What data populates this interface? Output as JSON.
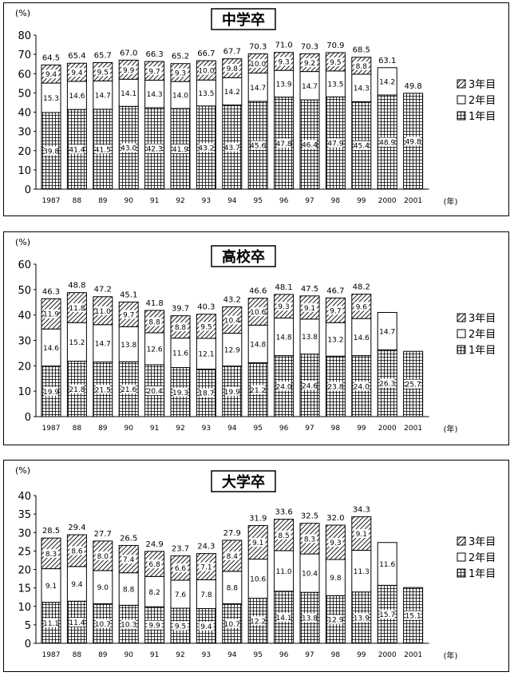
{
  "page": {
    "unit_label": "(%)",
    "year_suffix": "(年)"
  },
  "chart_data": [
    {
      "type": "bar",
      "stacked": true,
      "title": "中学卒",
      "ylabel": "(%)",
      "xlabel": "(年)",
      "ylim": [
        0,
        80
      ],
      "yticks": [
        0,
        10,
        20,
        30,
        40,
        50,
        60,
        70,
        80
      ],
      "categories": [
        "1987",
        "88",
        "89",
        "90",
        "91",
        "92",
        "93",
        "94",
        "95",
        "96",
        "97",
        "98",
        "99",
        "2000",
        "2001"
      ],
      "series": [
        {
          "name": "1年目",
          "values": [
            39.8,
            41.4,
            41.5,
            43.0,
            42.3,
            41.9,
            43.2,
            43.7,
            45.6,
            47.8,
            46.4,
            47.9,
            45.4,
            48.9,
            49.8
          ],
          "labels": [
            "39.8",
            "41.4",
            "41.5",
            "43.0",
            "42.3",
            "41.9",
            "43.2",
            "43.7",
            "45.6",
            "47.8",
            "46.4",
            "47.9",
            "45.4",
            "48.9",
            "49.8"
          ]
        },
        {
          "name": "2年目",
          "values": [
            15.3,
            14.6,
            14.7,
            14.1,
            14.3,
            14.0,
            13.5,
            14.2,
            14.7,
            13.9,
            14.7,
            13.5,
            14.3,
            14.2,
            null
          ],
          "labels": [
            "15.3",
            "14.6",
            "14.7",
            "14.1",
            "14.3",
            "14.0",
            "13.5",
            "14.2",
            "14.7",
            "13.9",
            "14.7",
            "13.5",
            "14.3",
            "14.2",
            ""
          ]
        },
        {
          "name": "3年目",
          "values": [
            9.4,
            9.4,
            9.5,
            9.9,
            9.7,
            9.3,
            10.0,
            9.8,
            10.0,
            9.3,
            9.2,
            9.5,
            8.8,
            null,
            null
          ],
          "labels": [
            "9.4",
            "9.4",
            "9.5",
            "9.9",
            "9.7",
            "9.3",
            "10.0",
            "9.8",
            "10.0",
            "9.3",
            "9.2",
            "9.5",
            "8.8",
            "",
            ""
          ]
        }
      ],
      "totals": [
        "64.5",
        "65.4",
        "65.7",
        "67.0",
        "66.3",
        "65.2",
        "66.7",
        "67.7",
        "70.3",
        "71.0",
        "70.3",
        "70.9",
        "68.5",
        "63.1",
        "49.8"
      ],
      "legend": [
        "3年目",
        "2年目",
        "1年目"
      ],
      "legend_position": "right"
    },
    {
      "type": "bar",
      "stacked": true,
      "title": "高校卒",
      "ylabel": "(%)",
      "xlabel": "(年)",
      "ylim": [
        0,
        60
      ],
      "yticks": [
        0,
        10,
        20,
        30,
        40,
        50,
        60
      ],
      "categories": [
        "1987",
        "88",
        "89",
        "90",
        "91",
        "92",
        "93",
        "94",
        "95",
        "96",
        "97",
        "98",
        "99",
        "2000",
        "2001"
      ],
      "series": [
        {
          "name": "1年目",
          "values": [
            19.9,
            21.8,
            21.5,
            21.6,
            20.4,
            19.3,
            18.7,
            19.9,
            21.2,
            24.0,
            24.6,
            23.8,
            24.0,
            26.3,
            25.7
          ],
          "labels": [
            "19.9",
            "21.8",
            "21.5",
            "21.6",
            "20.4",
            "19.3",
            "18.7",
            "19.9",
            "21.2",
            "24.0",
            "24.6",
            "23.8",
            "24.0",
            "26.3",
            "25.7"
          ]
        },
        {
          "name": "2年目",
          "values": [
            14.6,
            15.2,
            14.7,
            13.8,
            12.6,
            11.6,
            12.1,
            12.9,
            14.8,
            14.8,
            13.8,
            13.2,
            14.6,
            14.7,
            null
          ],
          "labels": [
            "14.6",
            "15.2",
            "14.7",
            "13.8",
            "12.6",
            "11.6",
            "12.1",
            "12.9",
            "14.8",
            "14.8",
            "13.8",
            "13.2",
            "14.6",
            "14.7",
            ""
          ]
        },
        {
          "name": "3年目",
          "values": [
            11.9,
            11.8,
            11.0,
            9.7,
            8.8,
            8.8,
            9.5,
            10.4,
            10.6,
            9.3,
            9.1,
            9.7,
            9.6,
            null,
            null
          ],
          "labels": [
            "11.9",
            "11.8",
            "11.0",
            "9.7",
            "8.8",
            "8.8",
            "9.5",
            "10.4",
            "10.6",
            "9.3",
            "9.1",
            "9.7",
            "9.6",
            "",
            ""
          ]
        }
      ],
      "totals": [
        "46.3",
        "48.8",
        "47.2",
        "45.1",
        "41.8",
        "39.7",
        "40.3",
        "43.2",
        "46.6",
        "48.1",
        "47.5",
        "46.7",
        "48.2",
        "",
        ""
      ],
      "legend": [
        "3年目",
        "2年目",
        "1年目"
      ],
      "legend_position": "right"
    },
    {
      "type": "bar",
      "stacked": true,
      "title": "大学卒",
      "ylabel": "(%)",
      "xlabel": "(年)",
      "ylim": [
        0,
        40
      ],
      "yticks": [
        0,
        5,
        10,
        15,
        20,
        25,
        30,
        35,
        40
      ],
      "categories": [
        "1987",
        "88",
        "89",
        "90",
        "91",
        "92",
        "93",
        "94",
        "95",
        "96",
        "97",
        "98",
        "99",
        "2000",
        "2001"
      ],
      "series": [
        {
          "name": "1年目",
          "values": [
            11.1,
            11.4,
            10.7,
            10.3,
            9.9,
            9.5,
            9.4,
            10.7,
            12.2,
            14.1,
            13.8,
            12.9,
            13.9,
            15.7,
            15.1
          ],
          "labels": [
            "11.1",
            "11.4",
            "10.7",
            "10.3",
            "9.9",
            "9.5",
            "9.4",
            "10.7",
            "12.2",
            "14.1",
            "13.8",
            "12.9",
            "13.9",
            "15.7",
            "15.1"
          ]
        },
        {
          "name": "2年目",
          "values": [
            9.1,
            9.4,
            9.0,
            8.8,
            8.2,
            7.6,
            7.8,
            8.8,
            10.6,
            11.0,
            10.4,
            9.8,
            11.3,
            11.6,
            null
          ],
          "labels": [
            "9.1",
            "9.4",
            "9.0",
            "8.8",
            "8.2",
            "7.6",
            "7.8",
            "8.8",
            "10.6",
            "11.0",
            "10.4",
            "9.8",
            "11.3",
            "11.6",
            ""
          ]
        },
        {
          "name": "3年目",
          "values": [
            8.3,
            8.6,
            8.0,
            7.4,
            6.8,
            6.6,
            7.1,
            8.4,
            9.1,
            8.5,
            8.3,
            9.3,
            9.1,
            null,
            null
          ],
          "labels": [
            "8.3",
            "8.6",
            "8.0",
            "7.4",
            "6.8",
            "6.6",
            "7.1",
            "8.4",
            "9.1",
            "8.5",
            "8.3",
            "9.3",
            "9.1",
            "",
            ""
          ]
        }
      ],
      "totals": [
        "28.5",
        "29.4",
        "27.7",
        "26.5",
        "24.9",
        "23.7",
        "24.3",
        "27.9",
        "31.9",
        "33.6",
        "32.5",
        "32.0",
        "34.3",
        "",
        ""
      ],
      "legend": [
        "3年目",
        "2年目",
        "1年目"
      ],
      "legend_position": "right"
    }
  ]
}
